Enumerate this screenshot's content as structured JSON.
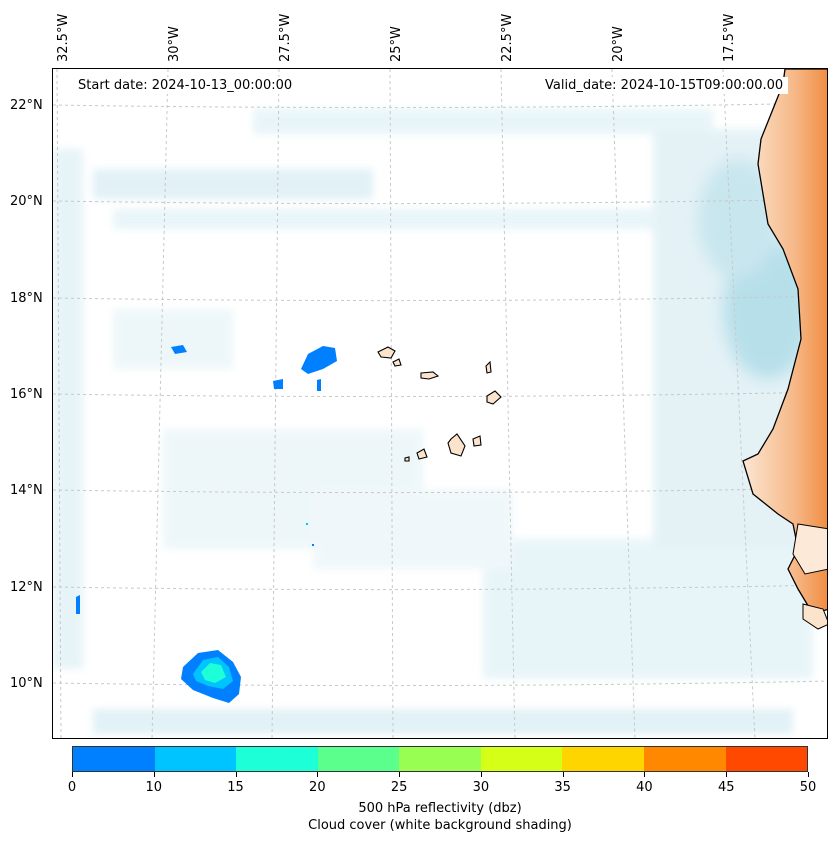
{
  "map": {
    "start_label": "Start date: 2024-10-13_00:00:00",
    "valid_label": "Valid_date: 2024-10-15T09:00:00.00",
    "lon_labels": [
      "32.5°W",
      "30°W",
      "27.5°W",
      "25°W",
      "22.5°W",
      "20°W",
      "17.5°W"
    ],
    "lat_labels": [
      "22°N",
      "20°N",
      "18°N",
      "16°N",
      "14°N",
      "12°N",
      "10°N"
    ],
    "extent": {
      "lon_min": -33.0,
      "lon_max": -15.6,
      "lat_min": 9.0,
      "lat_max": 22.7
    },
    "colors": {
      "land": "#fbe3cc",
      "land_warm": "#f2a060",
      "cloud": "#bfe3ee",
      "coastline": "#000000",
      "gridline": "#c8c8c8"
    }
  },
  "colorbar": {
    "ticks": [
      "0",
      "10",
      "15",
      "20",
      "25",
      "30",
      "35",
      "40",
      "45",
      "50"
    ],
    "colors": [
      "#0080ff",
      "#00c4ff",
      "#1dffd6",
      "#5bff8c",
      "#98ff52",
      "#d6ff18",
      "#ffd500",
      "#ff8800",
      "#ff4800"
    ],
    "title_line1": "500 hPa reflectivity (dbz)",
    "title_line2": "Cloud cover (white background shading)"
  }
}
